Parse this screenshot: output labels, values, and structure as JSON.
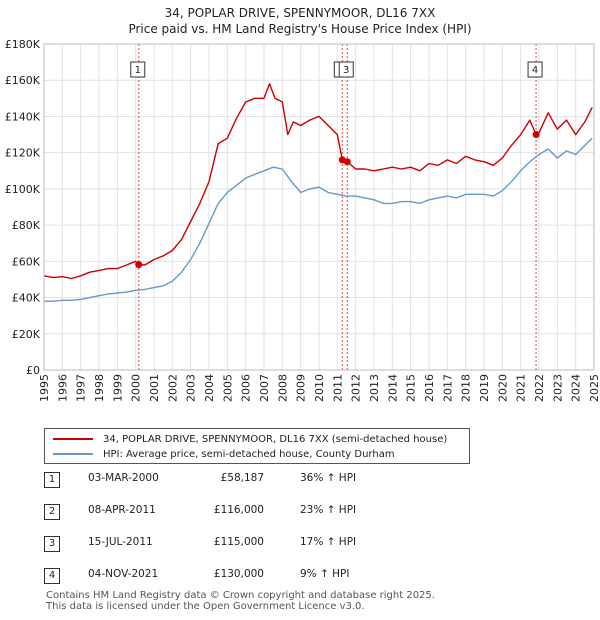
{
  "title_line1": "34, POPLAR DRIVE, SPENNYMOOR, DL16 7XX",
  "title_line2": "Price paid vs. HM Land Registry's House Price Index (HPI)",
  "legend": {
    "property": "34, POPLAR DRIVE, SPENNYMOOR, DL16 7XX (semi-detached house)",
    "hpi": "HPI: Average price, semi-detached house, County Durham"
  },
  "colors": {
    "property": "#cc0000",
    "hpi": "#6699cc",
    "sale_line": "#dd4444",
    "grid": "#e2e2e2"
  },
  "sales": [
    {
      "num": "1",
      "date": "03-MAR-2000",
      "price": "£58,187",
      "hpi": "36% ↑ HPI",
      "year": 2000.17,
      "value": 58187
    },
    {
      "num": "2",
      "date": "08-APR-2011",
      "price": "£116,000",
      "hpi": "23% ↑ HPI",
      "year": 2011.27,
      "value": 116000
    },
    {
      "num": "3",
      "date": "15-JUL-2011",
      "price": "£115,000",
      "hpi": "17% ↑ HPI",
      "year": 2011.54,
      "value": 115000
    },
    {
      "num": "4",
      "date": "04-NOV-2021",
      "price": "£130,000",
      "hpi": "9% ↑ HPI",
      "year": 2021.84,
      "value": 130000
    }
  ],
  "footer_line1": "Contains HM Land Registry data © Crown copyright and database right 2025.",
  "footer_line2": "This data is licensed under the Open Government Licence v3.0.",
  "chart_data": {
    "type": "line",
    "title": "34, POPLAR DRIVE, SPENNYMOOR, DL16 7XX — Price paid vs. HM Land Registry's House Price Index (HPI)",
    "xlabel": "",
    "ylabel": "",
    "xlim": [
      1995,
      2025
    ],
    "ylim": [
      0,
      180000
    ],
    "y_ticks": [
      0,
      20000,
      40000,
      60000,
      80000,
      100000,
      120000,
      140000,
      160000,
      180000
    ],
    "y_tick_labels": [
      "£0",
      "£20K",
      "£40K",
      "£60K",
      "£80K",
      "£100K",
      "£120K",
      "£140K",
      "£160K",
      "£180K"
    ],
    "x_ticks": [
      1995,
      1996,
      1997,
      1998,
      1999,
      2000,
      2001,
      2002,
      2003,
      2004,
      2005,
      2006,
      2007,
      2008,
      2009,
      2010,
      2011,
      2012,
      2013,
      2014,
      2015,
      2016,
      2017,
      2018,
      2019,
      2020,
      2021,
      2022,
      2023,
      2024,
      2025
    ],
    "grid": true,
    "series": [
      {
        "name": "34, POPLAR DRIVE, SPENNYMOOR, DL16 7XX (semi-detached house)",
        "x": [
          1995,
          1995.5,
          1996,
          1996.5,
          1997,
          1997.5,
          1998,
          1998.5,
          1999,
          1999.5,
          2000,
          2000.17,
          2000.5,
          2001,
          2001.5,
          2002,
          2002.5,
          2003,
          2003.5,
          2004,
          2004.5,
          2005,
          2005.5,
          2006,
          2006.5,
          2007,
          2007.3,
          2007.6,
          2008,
          2008.3,
          2008.6,
          2009,
          2009.5,
          2010,
          2010.5,
          2011,
          2011.27,
          2011.54,
          2012,
          2012.5,
          2013,
          2013.5,
          2014,
          2014.5,
          2015,
          2015.5,
          2016,
          2016.5,
          2017,
          2017.5,
          2018,
          2018.5,
          2019,
          2019.5,
          2020,
          2020.5,
          2021,
          2021.5,
          2021.84,
          2022,
          2022.5,
          2023,
          2023.5,
          2024,
          2024.5,
          2024.9
        ],
        "values": [
          52000,
          51000,
          51500,
          50500,
          52000,
          54000,
          55000,
          56000,
          56000,
          58000,
          60000,
          58187,
          58000,
          61000,
          63000,
          66000,
          72000,
          82000,
          92000,
          104000,
          125000,
          128000,
          139000,
          148000,
          150000,
          150000,
          158000,
          150000,
          148000,
          130000,
          137000,
          135000,
          138000,
          140000,
          135000,
          130000,
          116000,
          115000,
          111000,
          111000,
          110000,
          111000,
          112000,
          111000,
          112000,
          110000,
          114000,
          113000,
          116000,
          114000,
          118000,
          116000,
          115000,
          113000,
          117000,
          124000,
          130000,
          138000,
          130000,
          131000,
          142000,
          133000,
          138000,
          130000,
          137000,
          145000
        ]
      },
      {
        "name": "HPI: Average price, semi-detached house, County Durham",
        "x": [
          1995,
          1995.5,
          1996,
          1996.5,
          1997,
          1997.5,
          1998,
          1998.5,
          1999,
          1999.5,
          2000,
          2000.5,
          2001,
          2001.5,
          2002,
          2002.5,
          2003,
          2003.5,
          2004,
          2004.5,
          2005,
          2005.5,
          2006,
          2006.5,
          2007,
          2007.5,
          2008,
          2008.5,
          2009,
          2009.5,
          2010,
          2010.5,
          2011,
          2011.5,
          2012,
          2012.5,
          2013,
          2013.5,
          2014,
          2014.5,
          2015,
          2015.5,
          2016,
          2016.5,
          2017,
          2017.5,
          2018,
          2018.5,
          2019,
          2019.5,
          2020,
          2020.5,
          2021,
          2021.5,
          2022,
          2022.5,
          2023,
          2023.5,
          2024,
          2024.5,
          2024.9
        ],
        "values": [
          38000,
          38000,
          38500,
          38500,
          39000,
          40000,
          41000,
          42000,
          42500,
          43000,
          44000,
          44500,
          45500,
          46500,
          49000,
          54000,
          61000,
          70000,
          81000,
          92000,
          98000,
          102000,
          106000,
          108000,
          110000,
          112000,
          111000,
          104000,
          98000,
          100000,
          101000,
          98000,
          97000,
          96000,
          96000,
          95000,
          94000,
          92000,
          92000,
          93000,
          93000,
          92000,
          94000,
          95000,
          96000,
          95000,
          97000,
          97000,
          97000,
          96000,
          99000,
          104000,
          110000,
          115000,
          119000,
          122000,
          117000,
          121000,
          119000,
          124000,
          128000
        ]
      }
    ]
  }
}
